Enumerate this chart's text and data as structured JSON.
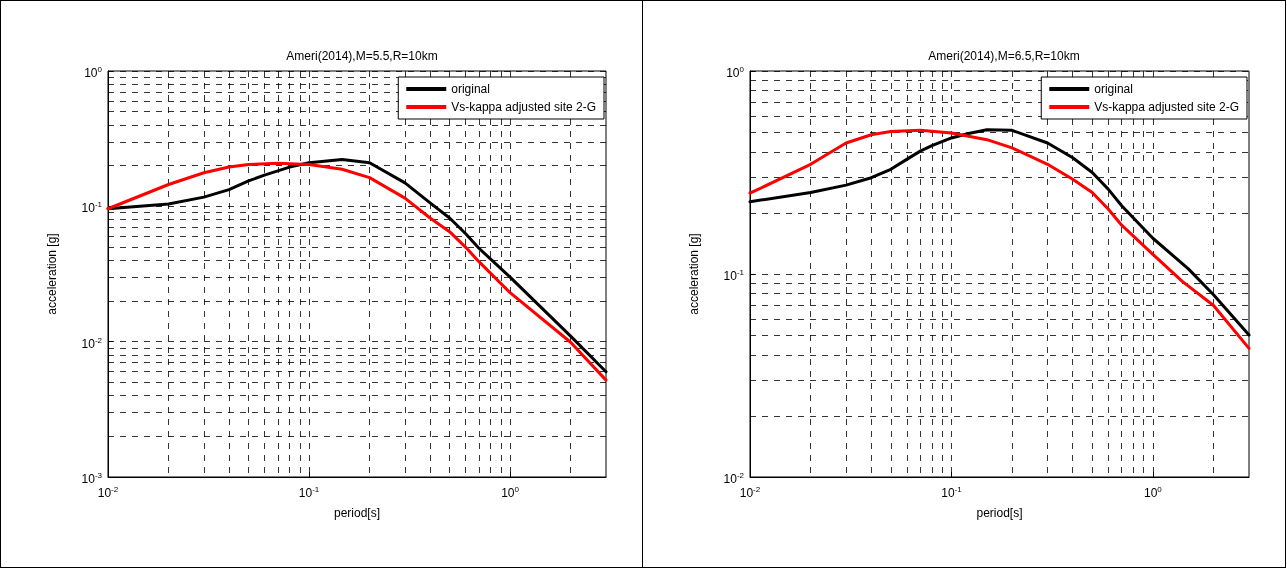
{
  "chart_data": [
    {
      "type": "line",
      "title": "Ameri(2014),M=5.5,R=10km",
      "xlabel": "period[s]",
      "ylabel": "acceleration [g]",
      "log": "xy",
      "grid": true,
      "legend": "top right",
      "marker": "none",
      "line_style": "solid",
      "xlim": [
        0.01,
        3
      ],
      "ylim": [
        0.001,
        1
      ],
      "xticks": [
        {
          "value": 0.01,
          "label": "10$^{-2}$"
        },
        {
          "value": 0.02,
          "label": null
        },
        {
          "value": 0.03,
          "label": null
        },
        {
          "value": 0.04,
          "label": null
        },
        {
          "value": 0.05,
          "label": null
        },
        {
          "value": 0.06,
          "label": null
        },
        {
          "value": 0.07,
          "label": null
        },
        {
          "value": 0.08,
          "label": null
        },
        {
          "value": 0.09,
          "label": null
        },
        {
          "value": 0.1,
          "label": "10$^{-1}$"
        },
        {
          "value": 0.2,
          "label": null
        },
        {
          "value": 0.3,
          "label": null
        },
        {
          "value": 0.4,
          "label": null
        },
        {
          "value": 0.5,
          "label": null
        },
        {
          "value": 0.6,
          "label": null
        },
        {
          "value": 0.7,
          "label": null
        },
        {
          "value": 0.8,
          "label": null
        },
        {
          "value": 0.9,
          "label": null
        },
        {
          "value": 1,
          "label": "10$^{0}$"
        },
        {
          "value": 2,
          "label": null
        }
      ],
      "yticks": [
        {
          "value": 0.001,
          "label": "10$^{-3}$"
        },
        {
          "value": 0.002,
          "label": null
        },
        {
          "value": 0.003,
          "label": null
        },
        {
          "value": 0.004,
          "label": null
        },
        {
          "value": 0.005,
          "label": null
        },
        {
          "value": 0.006,
          "label": null
        },
        {
          "value": 0.007,
          "label": null
        },
        {
          "value": 0.008,
          "label": null
        },
        {
          "value": 0.009,
          "label": null
        },
        {
          "value": 0.01,
          "label": "10$^{-2}$"
        },
        {
          "value": 0.02,
          "label": null
        },
        {
          "value": 0.03,
          "label": null
        },
        {
          "value": 0.04,
          "label": null
        },
        {
          "value": 0.05,
          "label": null
        },
        {
          "value": 0.06,
          "label": null
        },
        {
          "value": 0.07,
          "label": null
        },
        {
          "value": 0.08,
          "label": null
        },
        {
          "value": 0.09,
          "label": null
        },
        {
          "value": 0.1,
          "label": "10$^{-1}$"
        },
        {
          "value": 0.2,
          "label": null
        },
        {
          "value": 0.3,
          "label": null
        },
        {
          "value": 0.4,
          "label": null
        },
        {
          "value": 0.5,
          "label": null
        },
        {
          "value": 0.6,
          "label": null
        },
        {
          "value": 0.7,
          "label": null
        },
        {
          "value": 0.8,
          "label": null
        },
        {
          "value": 0.9,
          "label": null
        },
        {
          "value": 1,
          "label": "10$^{0}$"
        }
      ],
      "series": [
        {
          "name": "original",
          "color": "#000000",
          "x": [
            0.01,
            0.02,
            0.03,
            0.04,
            0.05,
            0.06,
            0.08,
            0.1,
            0.146,
            0.2,
            0.3,
            0.4,
            0.5,
            0.6,
            0.7,
            1,
            2,
            3
          ],
          "values": [
            0.096,
            0.104,
            0.117,
            0.133,
            0.154,
            0.17,
            0.195,
            0.21,
            0.222,
            0.21,
            0.149,
            0.106,
            0.082,
            0.063,
            0.049,
            0.03,
            0.011,
            0.006
          ]
        },
        {
          "name": "Vs-kappa adjusted site 2-G",
          "color": "#ff0000",
          "x": [
            0.01,
            0.02,
            0.03,
            0.04,
            0.05,
            0.07,
            0.1,
            0.146,
            0.2,
            0.3,
            0.4,
            0.5,
            0.6,
            0.7,
            1,
            2,
            3
          ],
          "values": [
            0.096,
            0.145,
            0.177,
            0.195,
            0.204,
            0.208,
            0.204,
            0.188,
            0.163,
            0.115,
            0.082,
            0.065,
            0.05,
            0.039,
            0.023,
            0.0099,
            0.0052
          ]
        }
      ]
    },
    {
      "type": "line",
      "title": "Ameri(2014),M=6.5,R=10km",
      "xlabel": "period[s]",
      "ylabel": "acceleration [g]",
      "log": "xy",
      "grid": true,
      "legend": "top right",
      "marker": "none",
      "line_style": "solid",
      "xlim": [
        0.01,
        3
      ],
      "ylim": [
        0.01,
        1
      ],
      "xticks": [
        {
          "value": 0.01,
          "label": "10$^{-2}$"
        },
        {
          "value": 0.02,
          "label": null
        },
        {
          "value": 0.03,
          "label": null
        },
        {
          "value": 0.04,
          "label": null
        },
        {
          "value": 0.05,
          "label": null
        },
        {
          "value": 0.06,
          "label": null
        },
        {
          "value": 0.07,
          "label": null
        },
        {
          "value": 0.08,
          "label": null
        },
        {
          "value": 0.09,
          "label": null
        },
        {
          "value": 0.1,
          "label": "10$^{-1}$"
        },
        {
          "value": 0.2,
          "label": null
        },
        {
          "value": 0.3,
          "label": null
        },
        {
          "value": 0.4,
          "label": null
        },
        {
          "value": 0.5,
          "label": null
        },
        {
          "value": 0.6,
          "label": null
        },
        {
          "value": 0.7,
          "label": null
        },
        {
          "value": 0.8,
          "label": null
        },
        {
          "value": 0.9,
          "label": null
        },
        {
          "value": 1,
          "label": "10$^{0}$"
        },
        {
          "value": 2,
          "label": null
        }
      ],
      "yticks": [
        {
          "value": 0.01,
          "label": "10$^{-2}$"
        },
        {
          "value": 0.02,
          "label": null
        },
        {
          "value": 0.03,
          "label": null
        },
        {
          "value": 0.04,
          "label": null
        },
        {
          "value": 0.05,
          "label": null
        },
        {
          "value": 0.06,
          "label": null
        },
        {
          "value": 0.07,
          "label": null
        },
        {
          "value": 0.08,
          "label": null
        },
        {
          "value": 0.09,
          "label": null
        },
        {
          "value": 0.1,
          "label": "10$^{-1}$"
        },
        {
          "value": 0.2,
          "label": null
        },
        {
          "value": 0.3,
          "label": null
        },
        {
          "value": 0.4,
          "label": null
        },
        {
          "value": 0.5,
          "label": null
        },
        {
          "value": 0.6,
          "label": null
        },
        {
          "value": 0.7,
          "label": null
        },
        {
          "value": 0.8,
          "label": null
        },
        {
          "value": 0.9,
          "label": null
        },
        {
          "value": 1,
          "label": "10$^{0}$"
        }
      ],
      "series": [
        {
          "name": "original",
          "color": "#000000",
          "x": [
            0.01,
            0.02,
            0.03,
            0.04,
            0.05,
            0.06,
            0.07,
            0.08,
            0.1,
            0.12,
            0.15,
            0.2,
            0.3,
            0.4,
            0.5,
            0.6,
            0.7,
            1,
            1.5,
            2,
            3
          ],
          "values": [
            0.227,
            0.252,
            0.274,
            0.298,
            0.328,
            0.367,
            0.403,
            0.429,
            0.468,
            0.491,
            0.513,
            0.51,
            0.442,
            0.374,
            0.316,
            0.262,
            0.217,
            0.15,
            0.106,
            0.079,
            0.05
          ]
        },
        {
          "name": "Vs-kappa adjusted site 2-G",
          "color": "#ff0000",
          "x": [
            0.01,
            0.02,
            0.03,
            0.04,
            0.05,
            0.07,
            0.1,
            0.15,
            0.2,
            0.3,
            0.4,
            0.5,
            0.6,
            0.7,
            1,
            1.4,
            2,
            3
          ],
          "values": [
            0.25,
            0.347,
            0.442,
            0.485,
            0.503,
            0.51,
            0.495,
            0.459,
            0.418,
            0.347,
            0.293,
            0.252,
            0.209,
            0.174,
            0.125,
            0.092,
            0.07,
            0.043
          ]
        }
      ]
    }
  ]
}
